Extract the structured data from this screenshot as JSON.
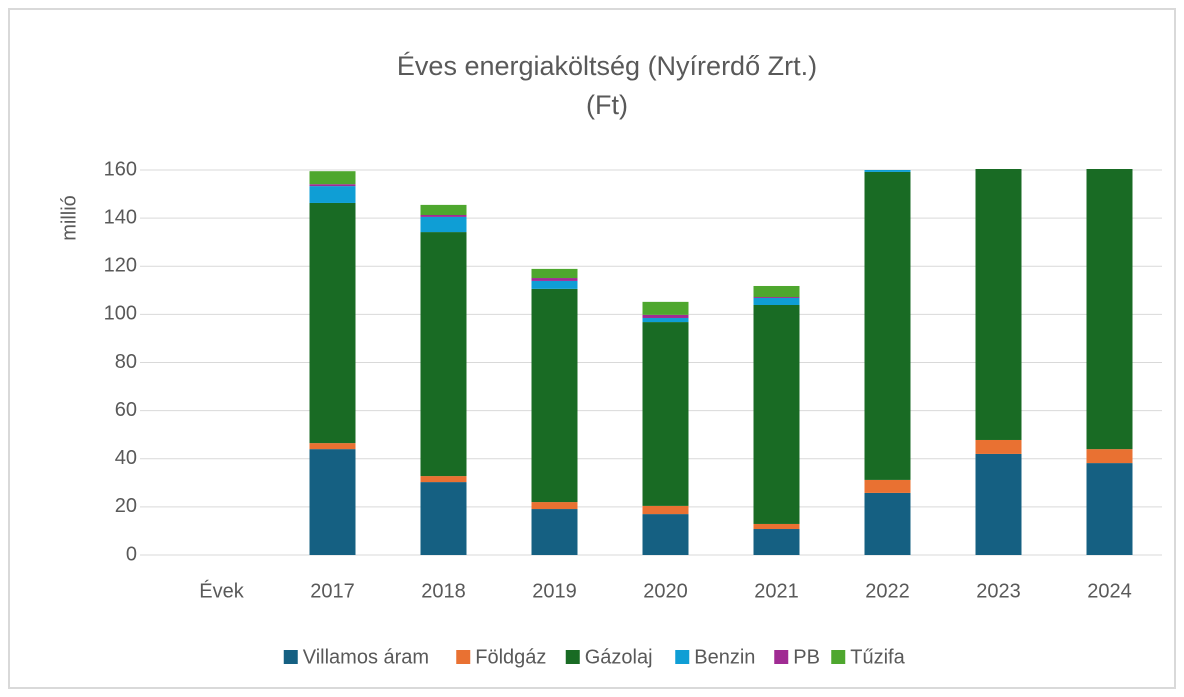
{
  "chart_data": {
    "type": "stacked_bar",
    "title": [
      "Éves energiaköltség (Nyírerdő Zrt.)",
      "(Ft)"
    ],
    "y_label": "millió",
    "categories": [
      "Évek",
      "2017",
      "2018",
      "2019",
      "2020",
      "2021",
      "2022",
      "2023",
      "2024"
    ],
    "series": [
      {
        "name": "Villamos áram",
        "color": "#156082",
        "values": [
          null,
          44,
          30.3,
          19.1,
          17,
          10.8,
          25.8,
          42,
          38.2
        ]
      },
      {
        "name": "Földgáz",
        "color": "#e97132",
        "values": [
          null,
          2.5,
          2.5,
          2.9,
          3.4,
          2.1,
          5.4,
          5.8,
          5.8
        ]
      },
      {
        "name": "Gázolaj",
        "color": "#196b24",
        "values": [
          null,
          99.8,
          101.4,
          88.6,
          76.4,
          91,
          128,
          115,
          118
        ]
      },
      {
        "name": "Benzin",
        "color": "#0f9ed5",
        "values": [
          null,
          7,
          6.3,
          3.3,
          1.7,
          2.9,
          0.8,
          0,
          0
        ]
      },
      {
        "name": "PB",
        "color": "#a02b93",
        "values": [
          null,
          0.8,
          0.8,
          1.2,
          1.3,
          0.4,
          0,
          0,
          0
        ]
      },
      {
        "name": "Tűzifa",
        "color": "#4ea72e",
        "values": [
          null,
          5.4,
          4.2,
          3.8,
          5.4,
          4.6,
          0,
          0,
          0
        ]
      }
    ],
    "ylim": [
      0,
      160
    ],
    "yticks": [
      0,
      20,
      40,
      60,
      80,
      100,
      120,
      140,
      160
    ],
    "grid": true,
    "legend": "bottom"
  }
}
